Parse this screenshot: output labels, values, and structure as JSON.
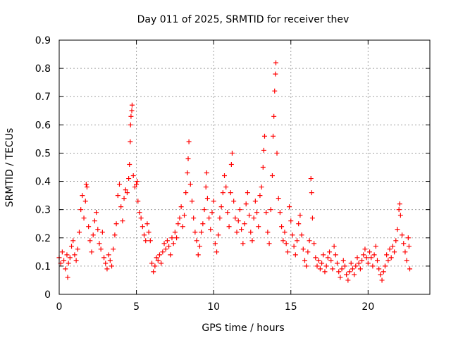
{
  "chart_data": {
    "type": "scatter",
    "title": "Day 011 of 2025, SRMTID for receiver thev",
    "xlabel": "GPS time / hours",
    "ylabel": "SRMTID / TECUs",
    "xlim": [
      0,
      24
    ],
    "ylim": [
      0,
      0.9
    ],
    "x_ticks": [
      0,
      5,
      10,
      15,
      20
    ],
    "x_tick_labels": [
      "0",
      "5",
      "10",
      "15",
      "20"
    ],
    "y_ticks": [
      0,
      0.1,
      0.2,
      0.3,
      0.4,
      0.5,
      0.6,
      0.7,
      0.8,
      0.9
    ],
    "y_tick_labels": [
      "0",
      "0.1",
      "0.2",
      "0.3",
      "0.4",
      "0.5",
      "0.6",
      "0.7",
      "0.8",
      "0.9"
    ],
    "grid": true,
    "marker": "plus",
    "color": "#ff0000",
    "series": [
      {
        "name": "SRMTID",
        "points": [
          [
            0.0,
            0.13
          ],
          [
            0.1,
            0.11
          ],
          [
            0.2,
            0.15
          ],
          [
            0.3,
            0.12
          ],
          [
            0.4,
            0.09
          ],
          [
            0.5,
            0.14
          ],
          [
            0.55,
            0.06
          ],
          [
            0.6,
            0.11
          ],
          [
            0.7,
            0.13
          ],
          [
            0.8,
            0.17
          ],
          [
            0.9,
            0.19
          ],
          [
            1.0,
            0.14
          ],
          [
            1.1,
            0.12
          ],
          [
            1.2,
            0.16
          ],
          [
            1.3,
            0.22
          ],
          [
            1.4,
            0.3
          ],
          [
            1.5,
            0.35
          ],
          [
            1.6,
            0.27
          ],
          [
            1.7,
            0.33
          ],
          [
            1.75,
            0.39
          ],
          [
            1.8,
            0.38
          ],
          [
            1.9,
            0.24
          ],
          [
            2.0,
            0.19
          ],
          [
            2.1,
            0.15
          ],
          [
            2.2,
            0.21
          ],
          [
            2.3,
            0.26
          ],
          [
            2.4,
            0.29
          ],
          [
            2.5,
            0.23
          ],
          [
            2.6,
            0.18
          ],
          [
            2.7,
            0.16
          ],
          [
            2.8,
            0.22
          ],
          [
            2.9,
            0.13
          ],
          [
            3.0,
            0.11
          ],
          [
            3.1,
            0.09
          ],
          [
            3.2,
            0.14
          ],
          [
            3.3,
            0.12
          ],
          [
            3.4,
            0.1
          ],
          [
            3.5,
            0.16
          ],
          [
            3.6,
            0.21
          ],
          [
            3.7,
            0.25
          ],
          [
            3.8,
            0.35
          ],
          [
            3.9,
            0.39
          ],
          [
            4.0,
            0.31
          ],
          [
            4.1,
            0.26
          ],
          [
            4.2,
            0.34
          ],
          [
            4.3,
            0.37
          ],
          [
            4.4,
            0.36
          ],
          [
            4.5,
            0.41
          ],
          [
            4.55,
            0.46
          ],
          [
            4.6,
            0.54
          ],
          [
            4.62,
            0.6
          ],
          [
            4.65,
            0.63
          ],
          [
            4.7,
            0.65
          ],
          [
            4.72,
            0.67
          ],
          [
            4.8,
            0.42
          ],
          [
            4.9,
            0.38
          ],
          [
            5.0,
            0.39
          ],
          [
            5.05,
            0.4
          ],
          [
            5.1,
            0.33
          ],
          [
            5.2,
            0.29
          ],
          [
            5.3,
            0.27
          ],
          [
            5.4,
            0.24
          ],
          [
            5.5,
            0.21
          ],
          [
            5.6,
            0.19
          ],
          [
            5.7,
            0.25
          ],
          [
            5.8,
            0.22
          ],
          [
            5.9,
            0.19
          ],
          [
            6.0,
            0.11
          ],
          [
            6.1,
            0.08
          ],
          [
            6.2,
            0.1
          ],
          [
            6.3,
            0.13
          ],
          [
            6.4,
            0.12
          ],
          [
            6.5,
            0.14
          ],
          [
            6.6,
            0.11
          ],
          [
            6.7,
            0.15
          ],
          [
            6.8,
            0.18
          ],
          [
            6.9,
            0.16
          ],
          [
            7.0,
            0.19
          ],
          [
            7.1,
            0.17
          ],
          [
            7.2,
            0.14
          ],
          [
            7.3,
            0.2
          ],
          [
            7.4,
            0.18
          ],
          [
            7.5,
            0.22
          ],
          [
            7.6,
            0.2
          ],
          [
            7.7,
            0.25
          ],
          [
            7.8,
            0.27
          ],
          [
            7.9,
            0.31
          ],
          [
            8.0,
            0.24
          ],
          [
            8.1,
            0.28
          ],
          [
            8.2,
            0.36
          ],
          [
            8.3,
            0.43
          ],
          [
            8.35,
            0.48
          ],
          [
            8.4,
            0.54
          ],
          [
            8.5,
            0.39
          ],
          [
            8.6,
            0.33
          ],
          [
            8.7,
            0.27
          ],
          [
            8.8,
            0.22
          ],
          [
            8.9,
            0.19
          ],
          [
            9.0,
            0.14
          ],
          [
            9.1,
            0.17
          ],
          [
            9.2,
            0.22
          ],
          [
            9.3,
            0.25
          ],
          [
            9.4,
            0.3
          ],
          [
            9.5,
            0.38
          ],
          [
            9.55,
            0.43
          ],
          [
            9.6,
            0.34
          ],
          [
            9.7,
            0.27
          ],
          [
            9.8,
            0.23
          ],
          [
            9.9,
            0.29
          ],
          [
            10.0,
            0.33
          ],
          [
            10.1,
            0.18
          ],
          [
            10.2,
            0.15
          ],
          [
            10.3,
            0.21
          ],
          [
            10.4,
            0.27
          ],
          [
            10.5,
            0.31
          ],
          [
            10.6,
            0.36
          ],
          [
            10.7,
            0.42
          ],
          [
            10.8,
            0.38
          ],
          [
            10.9,
            0.29
          ],
          [
            11.0,
            0.24
          ],
          [
            11.1,
            0.36
          ],
          [
            11.15,
            0.46
          ],
          [
            11.2,
            0.5
          ],
          [
            11.3,
            0.33
          ],
          [
            11.4,
            0.27
          ],
          [
            11.5,
            0.22
          ],
          [
            11.6,
            0.26
          ],
          [
            11.7,
            0.3
          ],
          [
            11.8,
            0.23
          ],
          [
            11.9,
            0.18
          ],
          [
            12.0,
            0.25
          ],
          [
            12.1,
            0.32
          ],
          [
            12.2,
            0.36
          ],
          [
            12.3,
            0.28
          ],
          [
            12.4,
            0.22
          ],
          [
            12.5,
            0.19
          ],
          [
            12.6,
            0.27
          ],
          [
            12.7,
            0.33
          ],
          [
            12.8,
            0.29
          ],
          [
            12.9,
            0.24
          ],
          [
            13.0,
            0.35
          ],
          [
            13.1,
            0.38
          ],
          [
            13.2,
            0.45
          ],
          [
            13.25,
            0.51
          ],
          [
            13.3,
            0.56
          ],
          [
            13.4,
            0.29
          ],
          [
            13.5,
            0.22
          ],
          [
            13.6,
            0.18
          ],
          [
            13.7,
            0.3
          ],
          [
            13.8,
            0.42
          ],
          [
            13.85,
            0.56
          ],
          [
            13.9,
            0.63
          ],
          [
            13.95,
            0.72
          ],
          [
            14.0,
            0.78
          ],
          [
            14.03,
            0.82
          ],
          [
            14.1,
            0.5
          ],
          [
            14.2,
            0.34
          ],
          [
            14.3,
            0.29
          ],
          [
            14.4,
            0.24
          ],
          [
            14.5,
            0.19
          ],
          [
            14.6,
            0.22
          ],
          [
            14.7,
            0.18
          ],
          [
            14.8,
            0.15
          ],
          [
            14.9,
            0.31
          ],
          [
            15.0,
            0.26
          ],
          [
            15.1,
            0.21
          ],
          [
            15.2,
            0.17
          ],
          [
            15.3,
            0.14
          ],
          [
            15.4,
            0.19
          ],
          [
            15.5,
            0.25
          ],
          [
            15.6,
            0.28
          ],
          [
            15.7,
            0.21
          ],
          [
            15.8,
            0.16
          ],
          [
            15.9,
            0.12
          ],
          [
            16.0,
            0.1
          ],
          [
            16.1,
            0.15
          ],
          [
            16.2,
            0.19
          ],
          [
            16.3,
            0.41
          ],
          [
            16.35,
            0.36
          ],
          [
            16.4,
            0.27
          ],
          [
            16.5,
            0.18
          ],
          [
            16.6,
            0.13
          ],
          [
            16.7,
            0.1
          ],
          [
            16.8,
            0.12
          ],
          [
            16.9,
            0.09
          ],
          [
            17.0,
            0.11
          ],
          [
            17.1,
            0.14
          ],
          [
            17.2,
            0.08
          ],
          [
            17.3,
            0.1
          ],
          [
            17.4,
            0.13
          ],
          [
            17.5,
            0.15
          ],
          [
            17.6,
            0.12
          ],
          [
            17.7,
            0.09
          ],
          [
            17.8,
            0.17
          ],
          [
            17.9,
            0.14
          ],
          [
            18.0,
            0.11
          ],
          [
            18.1,
            0.08
          ],
          [
            18.2,
            0.06
          ],
          [
            18.3,
            0.09
          ],
          [
            18.4,
            0.12
          ],
          [
            18.5,
            0.1
          ],
          [
            18.6,
            0.07
          ],
          [
            18.7,
            0.05
          ],
          [
            18.8,
            0.08
          ],
          [
            18.9,
            0.11
          ],
          [
            19.0,
            0.09
          ],
          [
            19.1,
            0.07
          ],
          [
            19.2,
            0.1
          ],
          [
            19.3,
            0.13
          ],
          [
            19.4,
            0.11
          ],
          [
            19.5,
            0.09
          ],
          [
            19.6,
            0.12
          ],
          [
            19.7,
            0.14
          ],
          [
            19.8,
            0.16
          ],
          [
            19.9,
            0.13
          ],
          [
            20.0,
            0.11
          ],
          [
            20.1,
            0.15
          ],
          [
            20.2,
            0.13
          ],
          [
            20.3,
            0.1
          ],
          [
            20.4,
            0.14
          ],
          [
            20.5,
            0.17
          ],
          [
            20.6,
            0.12
          ],
          [
            20.7,
            0.09
          ],
          [
            20.8,
            0.07
          ],
          [
            20.9,
            0.05
          ],
          [
            21.0,
            0.08
          ],
          [
            21.1,
            0.1
          ],
          [
            21.2,
            0.14
          ],
          [
            21.3,
            0.12
          ],
          [
            21.4,
            0.16
          ],
          [
            21.5,
            0.13
          ],
          [
            21.6,
            0.17
          ],
          [
            21.7,
            0.15
          ],
          [
            21.8,
            0.19
          ],
          [
            21.9,
            0.23
          ],
          [
            22.0,
            0.3
          ],
          [
            22.05,
            0.32
          ],
          [
            22.1,
            0.28
          ],
          [
            22.2,
            0.21
          ],
          [
            22.3,
            0.18
          ],
          [
            22.4,
            0.15
          ],
          [
            22.5,
            0.12
          ],
          [
            22.6,
            0.2
          ],
          [
            22.65,
            0.17
          ],
          [
            22.7,
            0.09
          ]
        ]
      }
    ]
  }
}
